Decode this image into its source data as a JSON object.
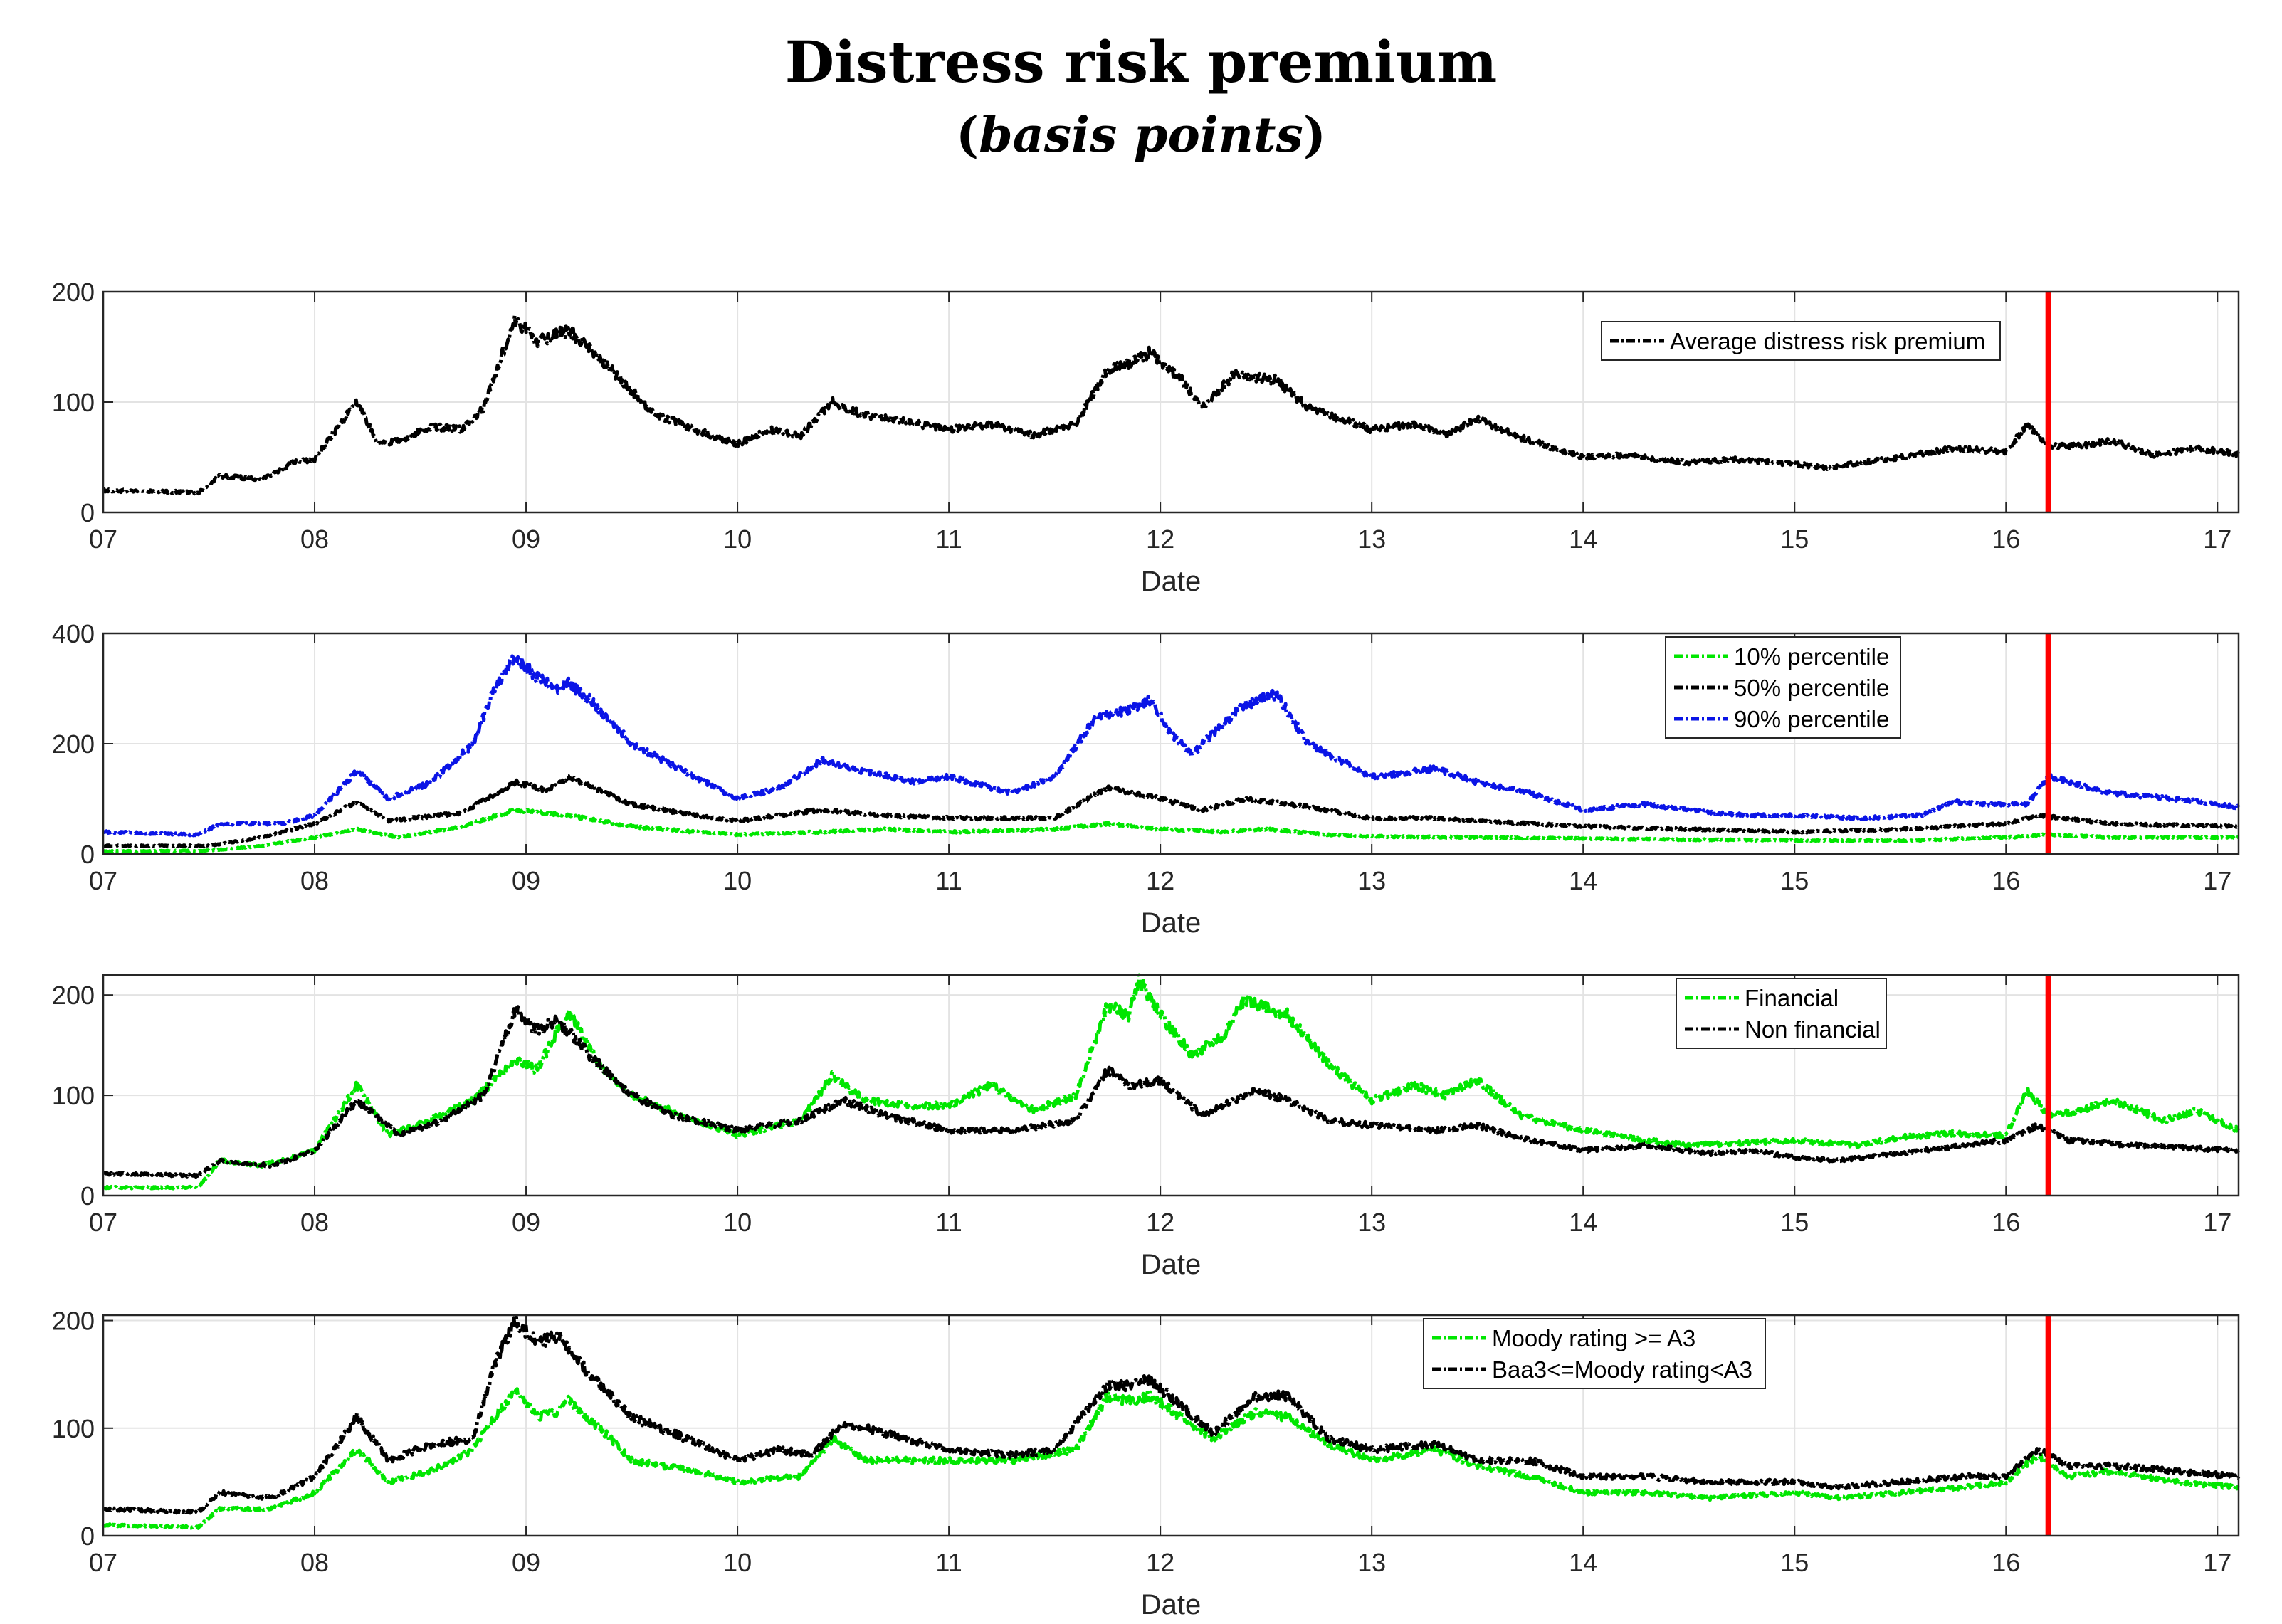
{
  "title": "Distress risk premium",
  "subtitle": {
    "open": "(",
    "italic": "basis points",
    "close": ")"
  },
  "colors": {
    "black": "#000000",
    "green": "#00e600",
    "blue": "#0a14e6",
    "red": "#ff0000",
    "grid": "#e3e3e3"
  },
  "chart_data": [
    {
      "type": "line",
      "title": "",
      "xlabel": "Date",
      "ylabel": "",
      "x_ticks": [
        "07",
        "08",
        "09",
        "10",
        "11",
        "12",
        "13",
        "14",
        "15",
        "16",
        "17"
      ],
      "xlim": [
        2007.0,
        2017.1
      ],
      "ylim": [
        0,
        200
      ],
      "y_ticks": [
        0,
        100,
        200
      ],
      "grid": true,
      "legend_position": "top-right",
      "vertical_line_x": 2016.2,
      "series": [
        {
          "name": "Average distress risk premium",
          "color": "black",
          "x": [
            2007.0,
            2007.25,
            2007.45,
            2007.55,
            2007.75,
            2007.9,
            2008.0,
            2008.1,
            2008.2,
            2008.3,
            2008.4,
            2008.55,
            2008.7,
            2008.8,
            2008.9,
            2008.95,
            2009.05,
            2009.2,
            2009.35,
            2009.5,
            2009.6,
            2009.8,
            2010.0,
            2010.15,
            2010.3,
            2010.45,
            2010.6,
            2010.8,
            2011.0,
            2011.2,
            2011.4,
            2011.6,
            2011.75,
            2011.85,
            2011.95,
            2012.1,
            2012.2,
            2012.35,
            2012.55,
            2012.7,
            2012.85,
            2013.0,
            2013.2,
            2013.35,
            2013.5,
            2013.7,
            2014.0,
            2014.2,
            2014.5,
            2014.7,
            2015.0,
            2015.15,
            2015.3,
            2015.5,
            2015.75,
            2016.0,
            2016.1,
            2016.2,
            2016.35,
            2016.5,
            2016.7,
            2016.9,
            2017.1
          ],
          "values": [
            20,
            19,
            18,
            33,
            30,
            45,
            48,
            75,
            100,
            62,
            65,
            78,
            75,
            95,
            150,
            175,
            155,
            165,
            140,
            110,
            90,
            75,
            62,
            75,
            70,
            100,
            88,
            82,
            75,
            80,
            70,
            80,
            130,
            135,
            145,
            120,
            95,
            125,
            120,
            95,
            85,
            75,
            80,
            70,
            85,
            68,
            50,
            52,
            45,
            48,
            44,
            40,
            45,
            50,
            58,
            55,
            80,
            60,
            60,
            65,
            52,
            58,
            53
          ]
        }
      ]
    },
    {
      "type": "line",
      "title": "",
      "xlabel": "Date",
      "ylabel": "",
      "x_ticks": [
        "07",
        "08",
        "09",
        "10",
        "11",
        "12",
        "13",
        "14",
        "15",
        "16",
        "17"
      ],
      "xlim": [
        2007.0,
        2017.1
      ],
      "ylim": [
        0,
        400
      ],
      "y_ticks": [
        0,
        200,
        400
      ],
      "grid": true,
      "legend_position": "top-right",
      "vertical_line_x": 2016.2,
      "series": [
        {
          "name": "10% percentile",
          "color": "green",
          "x": [
            2007.0,
            2007.5,
            2007.75,
            2008.0,
            2008.2,
            2008.4,
            2008.7,
            2008.95,
            2009.2,
            2009.5,
            2009.8,
            2010.0,
            2010.4,
            2010.7,
            2011.0,
            2011.5,
            2011.75,
            2012.0,
            2012.3,
            2012.5,
            2012.8,
            2013.0,
            2013.5,
            2014.0,
            2014.5,
            2015.0,
            2015.5,
            2016.0,
            2016.2,
            2016.5,
            2017.1
          ],
          "values": [
            5,
            6,
            15,
            30,
            45,
            30,
            50,
            80,
            70,
            50,
            40,
            35,
            40,
            45,
            40,
            45,
            55,
            45,
            40,
            45,
            35,
            32,
            30,
            28,
            26,
            25,
            24,
            30,
            35,
            30,
            30
          ]
        },
        {
          "name": "50% percentile",
          "color": "black",
          "x": [
            2007.0,
            2007.5,
            2007.75,
            2008.0,
            2008.2,
            2008.35,
            2008.7,
            2008.95,
            2009.1,
            2009.2,
            2009.5,
            2009.8,
            2010.0,
            2010.4,
            2010.7,
            2011.0,
            2011.5,
            2011.75,
            2012.0,
            2012.2,
            2012.4,
            2012.7,
            2013.0,
            2013.3,
            2013.5,
            2014.0,
            2014.5,
            2015.0,
            2015.5,
            2016.0,
            2016.15,
            2016.5,
            2017.1
          ],
          "values": [
            15,
            15,
            30,
            55,
            95,
            60,
            75,
            130,
            115,
            140,
            90,
            70,
            60,
            80,
            70,
            65,
            65,
            120,
            100,
            80,
            100,
            85,
            65,
            65,
            60,
            50,
            45,
            40,
            45,
            55,
            70,
            55,
            50
          ]
        },
        {
          "name": "90% percentile",
          "color": "blue",
          "x": [
            2007.0,
            2007.45,
            2007.55,
            2007.85,
            2008.0,
            2008.2,
            2008.35,
            2008.55,
            2008.75,
            2008.85,
            2008.95,
            2009.05,
            2009.15,
            2009.2,
            2009.3,
            2009.5,
            2009.7,
            2010.0,
            2010.2,
            2010.4,
            2010.6,
            2010.85,
            2011.0,
            2011.3,
            2011.5,
            2011.7,
            2011.85,
            2011.95,
            2012.05,
            2012.15,
            2012.25,
            2012.4,
            2012.55,
            2012.7,
            2012.85,
            2013.0,
            2013.3,
            2013.5,
            2013.75,
            2014.0,
            2014.3,
            2014.6,
            2014.8,
            2015.0,
            2015.3,
            2015.6,
            2015.75,
            2015.9,
            2016.1,
            2016.2,
            2016.5,
            2016.8,
            2017.1
          ],
          "values": [
            40,
            35,
            55,
            55,
            70,
            150,
            100,
            130,
            200,
            300,
            360,
            320,
            300,
            310,
            280,
            200,
            160,
            100,
            120,
            170,
            150,
            130,
            140,
            110,
            140,
            250,
            260,
            280,
            220,
            180,
            220,
            270,
            290,
            200,
            170,
            140,
            155,
            130,
            110,
            80,
            90,
            75,
            70,
            70,
            65,
            70,
            95,
            90,
            90,
            140,
            110,
            100,
            85
          ]
        }
      ]
    },
    {
      "type": "line",
      "title": "",
      "xlabel": "Date",
      "ylabel": "",
      "x_ticks": [
        "07",
        "08",
        "09",
        "10",
        "11",
        "12",
        "13",
        "14",
        "15",
        "16",
        "17"
      ],
      "xlim": [
        2007.0,
        2017.1
      ],
      "ylim": [
        0,
        220
      ],
      "y_ticks": [
        0,
        100,
        200
      ],
      "grid": true,
      "legend_position": "top-center",
      "vertical_line_x": 2016.2,
      "series": [
        {
          "name": "Financial",
          "color": "green",
          "x": [
            2007.0,
            2007.45,
            2007.55,
            2007.75,
            2008.0,
            2008.2,
            2008.35,
            2008.6,
            2008.75,
            2008.95,
            2009.05,
            2009.2,
            2009.35,
            2009.5,
            2009.8,
            2010.0,
            2010.3,
            2010.45,
            2010.6,
            2010.8,
            2011.0,
            2011.2,
            2011.4,
            2011.6,
            2011.75,
            2011.85,
            2011.9,
            2012.0,
            2012.15,
            2012.3,
            2012.4,
            2012.6,
            2012.8,
            2013.0,
            2013.2,
            2013.35,
            2013.5,
            2013.7,
            2014.0,
            2014.3,
            2014.5,
            2014.7,
            2015.0,
            2015.3,
            2015.5,
            2015.75,
            2016.0,
            2016.1,
            2016.2,
            2016.35,
            2016.5,
            2016.75,
            2016.9,
            2017.1
          ],
          "values": [
            8,
            8,
            35,
            30,
            45,
            110,
            60,
            80,
            95,
            135,
            125,
            185,
            130,
            100,
            75,
            60,
            75,
            120,
            95,
            90,
            90,
            110,
            85,
            100,
            190,
            180,
            215,
            180,
            140,
            160,
            195,
            180,
            130,
            95,
            110,
            100,
            115,
            80,
            65,
            55,
            50,
            52,
            55,
            50,
            58,
            62,
            60,
            105,
            80,
            85,
            95,
            75,
            85,
            65
          ]
        },
        {
          "name": "Non financial",
          "color": "black",
          "x": [
            2007.0,
            2007.45,
            2007.55,
            2007.8,
            2008.0,
            2008.2,
            2008.4,
            2008.6,
            2008.8,
            2008.95,
            2009.05,
            2009.15,
            2009.3,
            2009.5,
            2009.7,
            2010.0,
            2010.3,
            2010.5,
            2010.7,
            2011.0,
            2011.3,
            2011.6,
            2011.75,
            2011.85,
            2012.0,
            2012.2,
            2012.45,
            2012.6,
            2012.8,
            2013.0,
            2013.3,
            2013.5,
            2013.75,
            2014.0,
            2014.3,
            2014.6,
            2014.8,
            2015.0,
            2015.2,
            2015.5,
            2015.8,
            2016.0,
            2016.15,
            2016.3,
            2016.6,
            2017.1
          ],
          "values": [
            22,
            20,
            35,
            30,
            45,
            95,
            60,
            75,
            100,
            185,
            165,
            175,
            140,
            100,
            80,
            65,
            75,
            95,
            80,
            65,
            65,
            75,
            125,
            110,
            115,
            80,
            105,
            95,
            75,
            70,
            65,
            70,
            55,
            45,
            50,
            42,
            45,
            38,
            35,
            42,
            50,
            55,
            70,
            55,
            50,
            45
          ]
        }
      ]
    },
    {
      "type": "line",
      "title": "",
      "xlabel": "Date",
      "ylabel": "",
      "x_ticks": [
        "07",
        "08",
        "09",
        "10",
        "11",
        "12",
        "13",
        "14",
        "15",
        "16",
        "17"
      ],
      "xlim": [
        2007.0,
        2017.1
      ],
      "ylim": [
        0,
        205
      ],
      "y_ticks": [
        0,
        100,
        200
      ],
      "grid": true,
      "legend_position": "top-center",
      "vertical_line_x": 2016.2,
      "series": [
        {
          "name": "Moody rating >= A3",
          "color": "green",
          "x": [
            2007.0,
            2007.45,
            2007.55,
            2007.8,
            2008.0,
            2008.2,
            2008.35,
            2008.55,
            2008.75,
            2008.85,
            2008.95,
            2009.05,
            2009.15,
            2009.2,
            2009.35,
            2009.5,
            2009.8,
            2010.0,
            2010.3,
            2010.45,
            2010.6,
            2010.8,
            2011.0,
            2011.3,
            2011.6,
            2011.75,
            2011.85,
            2011.95,
            2012.1,
            2012.25,
            2012.45,
            2012.6,
            2012.8,
            2013.0,
            2013.3,
            2013.5,
            2013.75,
            2014.0,
            2014.3,
            2014.6,
            2015.0,
            2015.2,
            2015.5,
            2015.8,
            2016.0,
            2016.15,
            2016.3,
            2016.5,
            2016.8,
            2017.1
          ],
          "values": [
            10,
            8,
            25,
            25,
            40,
            80,
            50,
            60,
            80,
            110,
            135,
            110,
            115,
            125,
            100,
            70,
            60,
            50,
            55,
            90,
            70,
            70,
            70,
            70,
            80,
            130,
            125,
            130,
            110,
            90,
            115,
            110,
            85,
            70,
            80,
            65,
            55,
            40,
            40,
            35,
            40,
            35,
            40,
            45,
            50,
            75,
            55,
            60,
            50,
            45
          ]
        },
        {
          "name": "Baa3<=Moody rating<A3",
          "color": "black",
          "x": [
            2007.0,
            2007.45,
            2007.55,
            2007.8,
            2008.0,
            2008.2,
            2008.35,
            2008.55,
            2008.75,
            2008.85,
            2008.95,
            2009.05,
            2009.15,
            2009.3,
            2009.5,
            2009.7,
            2010.0,
            2010.2,
            2010.35,
            2010.5,
            2010.7,
            2011.0,
            2011.3,
            2011.5,
            2011.75,
            2011.85,
            2011.95,
            2012.1,
            2012.25,
            2012.45,
            2012.6,
            2012.8,
            2013.0,
            2013.3,
            2013.5,
            2013.75,
            2014.0,
            2014.3,
            2014.6,
            2015.0,
            2015.2,
            2015.5,
            2015.8,
            2016.0,
            2016.15,
            2016.3,
            2016.5,
            2016.8,
            2017.1
          ],
          "values": [
            25,
            22,
            40,
            35,
            55,
            110,
            70,
            85,
            90,
            160,
            200,
            180,
            185,
            150,
            110,
            95,
            70,
            80,
            75,
            105,
            95,
            80,
            75,
            80,
            140,
            140,
            145,
            120,
            95,
            130,
            130,
            90,
            80,
            85,
            70,
            70,
            55,
            55,
            50,
            50,
            45,
            50,
            55,
            55,
            80,
            65,
            65,
            60,
            55
          ]
        }
      ]
    }
  ]
}
